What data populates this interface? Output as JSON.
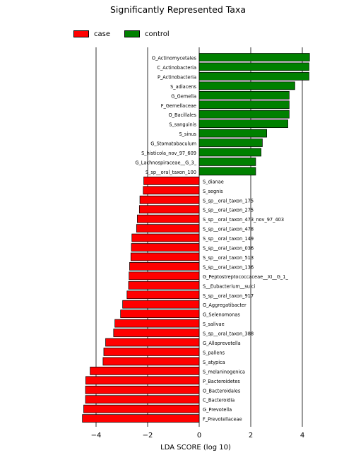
{
  "chart_data": {
    "type": "bar",
    "title": "Significantly Represented Taxa",
    "xlabel": "LDA SCORE (log 10)",
    "ylabel": "",
    "xlim": [
      -4.6,
      4.6
    ],
    "xticks": [
      -4,
      -2,
      0,
      2,
      4
    ],
    "grid": "vertical",
    "legend_position": "top-left",
    "colors": {
      "case": "#ff0000",
      "control": "#008000"
    },
    "series": [
      {
        "name": "case",
        "color": "#ff0000"
      },
      {
        "name": "control",
        "color": "#008000"
      }
    ],
    "categories": [
      "O_Actinomycetales",
      "C_Actinobacteria",
      "P_Actinobacteria",
      "S_adiacens",
      "G_Gemella",
      "F_Gemellaceae",
      "O_Bacillales",
      "S_sanguinis",
      "S_sinus",
      "G_Stomatobaculum",
      "S_histicola_nov_97_609",
      "G_Lachnospiraceae__G_3_",
      "S_sp__oral_taxon_100",
      "S_dianae",
      "S_segnis",
      "S_sp__oral_taxon_175",
      "S_sp__oral_taxon_275",
      "S_sp__oral_taxon_473_nov_97_403",
      "S_sp__oral_taxon_478",
      "S_sp__oral_taxon_149",
      "S_sp__oral_taxon_036",
      "S_sp__oral_taxon_513",
      "S_sp__oral_taxon_136",
      "G_Peptostreptococcaceae__XI__G_1_",
      "S__Eubacterium__sulci",
      "S_sp__oral_taxon_917",
      "G_Aggregatibacter",
      "G_Selenomonas",
      "S_salivae",
      "S_sp__oral_taxon_388",
      "G_Alloprevotella",
      "S_pallens",
      "S_atypica",
      "S_melaninogenica",
      "P_Bacteroidetes",
      "O_Bacteroidales",
      "C_Bacteroidia",
      "G_Prevotella",
      "F_Prevotellaceae"
    ],
    "values": [
      4.28,
      4.26,
      4.26,
      3.71,
      3.49,
      3.49,
      3.49,
      3.44,
      2.62,
      2.45,
      2.4,
      2.19,
      2.19,
      -2.15,
      -2.17,
      -2.3,
      -2.32,
      -2.4,
      -2.43,
      -2.61,
      -2.63,
      -2.65,
      -2.7,
      -2.72,
      -2.74,
      -2.8,
      -2.97,
      -3.05,
      -3.27,
      -3.32,
      -3.63,
      -3.7,
      -3.73,
      -4.23,
      -4.4,
      -4.41,
      -4.41,
      -4.48,
      -4.53
    ],
    "groups": [
      "control",
      "control",
      "control",
      "control",
      "control",
      "control",
      "control",
      "control",
      "control",
      "control",
      "control",
      "control",
      "control",
      "case",
      "case",
      "case",
      "case",
      "case",
      "case",
      "case",
      "case",
      "case",
      "case",
      "case",
      "case",
      "case",
      "case",
      "case",
      "case",
      "case",
      "case",
      "case",
      "case",
      "case",
      "case",
      "case",
      "case",
      "case",
      "case"
    ]
  }
}
